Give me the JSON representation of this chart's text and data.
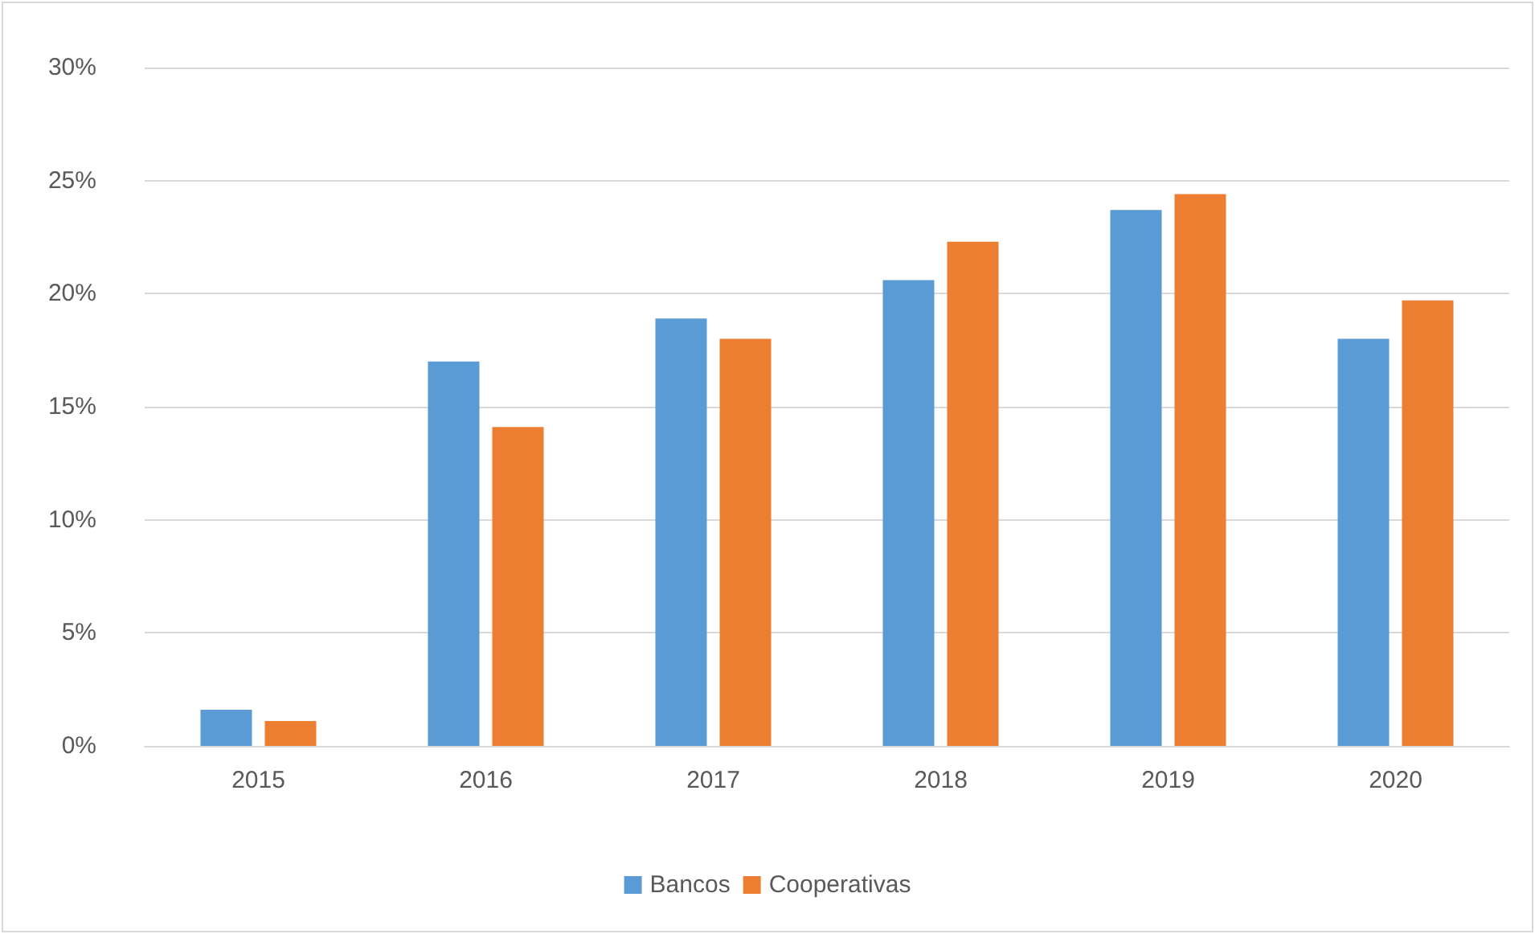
{
  "chart_data": {
    "type": "bar",
    "categories": [
      "2015",
      "2016",
      "2017",
      "2018",
      "2019",
      "2020"
    ],
    "series": [
      {
        "name": "Bancos",
        "color": "#5b9bd5",
        "values": [
          1.6,
          17.0,
          18.9,
          20.6,
          23.7,
          18.0
        ]
      },
      {
        "name": "Cooperativas",
        "color": "#ed7d31",
        "values": [
          1.1,
          14.1,
          18.0,
          22.3,
          24.4,
          19.7
        ]
      }
    ],
    "ylim": [
      0,
      30
    ],
    "yticks": [
      {
        "value": 0,
        "label": "0%"
      },
      {
        "value": 5,
        "label": "5%"
      },
      {
        "value": 10,
        "label": "10%"
      },
      {
        "value": 15,
        "label": "15%"
      },
      {
        "value": 20,
        "label": "20%"
      },
      {
        "value": 25,
        "label": "25%"
      },
      {
        "value": 30,
        "label": "30%"
      }
    ],
    "grid": "y",
    "legend": "bottom"
  }
}
